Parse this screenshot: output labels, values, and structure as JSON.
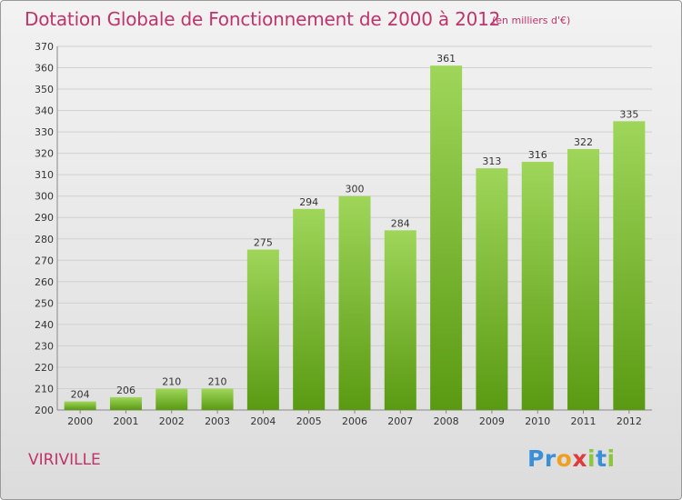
{
  "header": {
    "title": "Dotation Globale de Fonctionnement de 2000 à 2012",
    "unit_note": "(en milliers d'€)"
  },
  "footer": {
    "commune": "VIRIVILLE",
    "logo_letters": [
      {
        "char": "P",
        "color": "#3a8fd8"
      },
      {
        "char": "r",
        "color": "#3a8fd8"
      },
      {
        "char": "o",
        "color": "#f0a020"
      },
      {
        "char": "x",
        "color": "#e03a3a"
      },
      {
        "char": "i",
        "color": "#8cc63f"
      },
      {
        "char": "t",
        "color": "#3a8fd8"
      },
      {
        "char": "i",
        "color": "#8cc63f"
      }
    ]
  },
  "colors": {
    "title": "#c0336b",
    "bar_light": "#9fd65a",
    "bar_dark": "#5a9a12",
    "grid": "#d0d0d0"
  },
  "chart_data": {
    "type": "bar",
    "title": "Dotation Globale de Fonctionnement de 2000 à 2012",
    "subtitle": "(en milliers d'€)",
    "xlabel": "",
    "ylabel": "",
    "categories": [
      "2000",
      "2001",
      "2002",
      "2003",
      "2004",
      "2005",
      "2006",
      "2007",
      "2008",
      "2009",
      "2010",
      "2011",
      "2012"
    ],
    "values": [
      204,
      206,
      210,
      210,
      275,
      294,
      300,
      284,
      361,
      313,
      316,
      322,
      335
    ],
    "ylim": [
      200,
      370
    ],
    "yticks": [
      200,
      210,
      220,
      230,
      240,
      250,
      260,
      270,
      280,
      290,
      300,
      310,
      320,
      330,
      340,
      350,
      360,
      370
    ],
    "grid": true,
    "legend": "none"
  }
}
